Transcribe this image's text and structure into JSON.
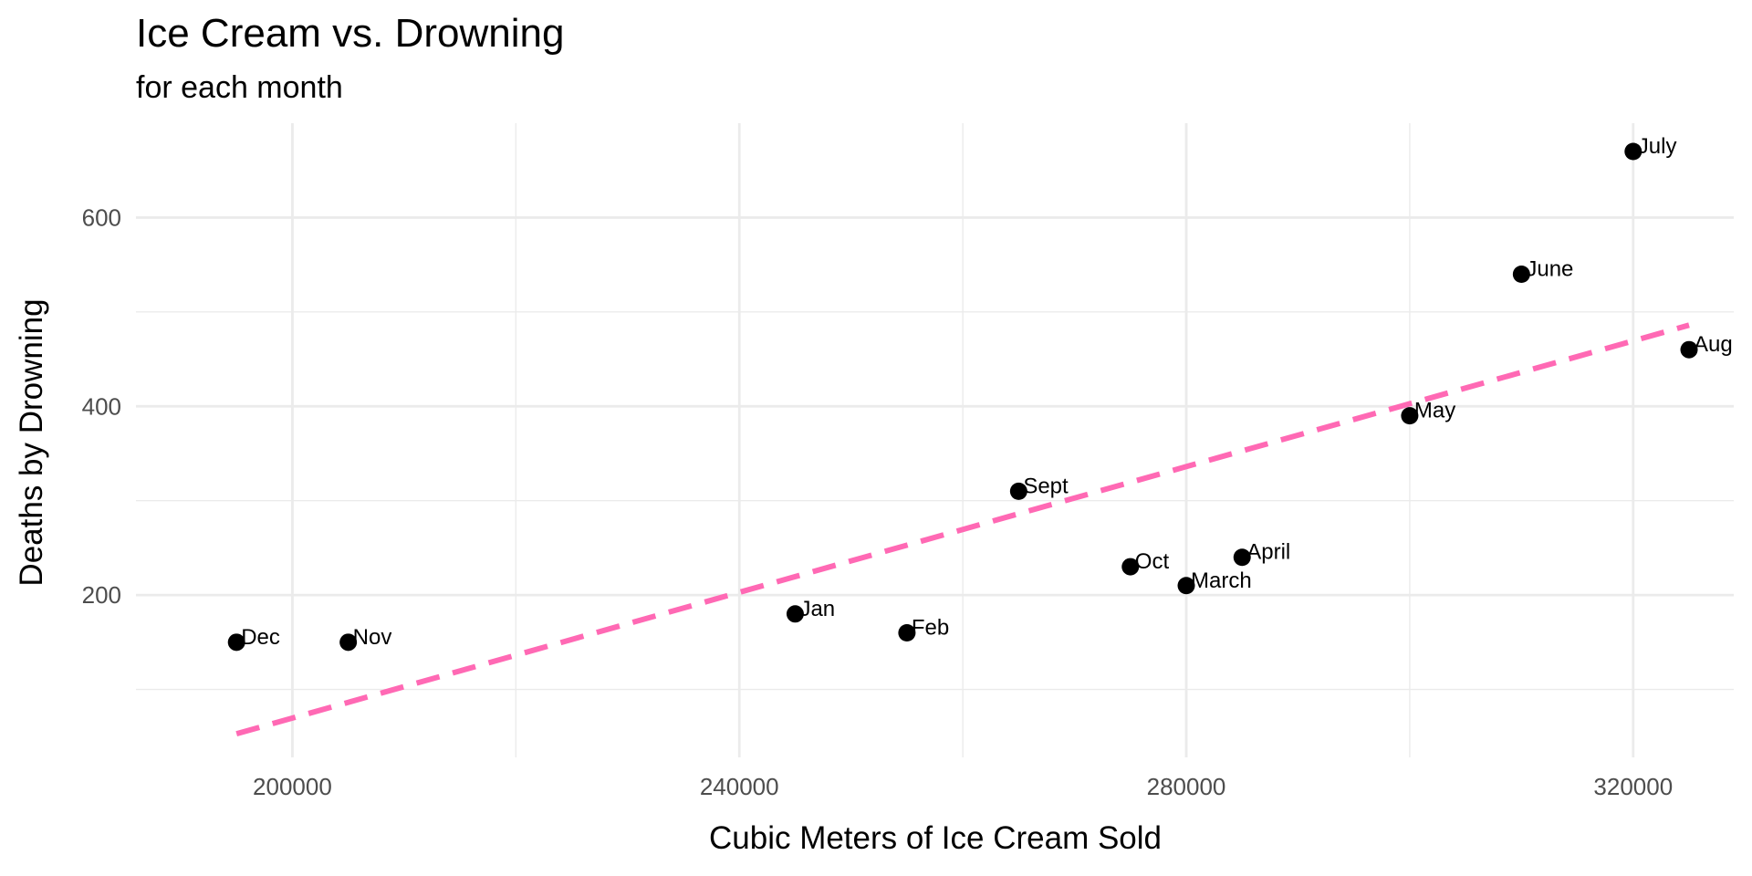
{
  "chart_data": {
    "type": "scatter",
    "title": "Ice Cream vs. Drowning",
    "subtitle": "for each month",
    "xlabel": "Cubic Meters of Ice Cream Sold",
    "ylabel": "Deaths by Drowning",
    "xlim": [
      186000,
      329000
    ],
    "ylim": [
      28,
      700
    ],
    "x_ticks": [
      200000,
      240000,
      280000,
      320000
    ],
    "y_ticks": [
      200,
      400,
      600
    ],
    "grid": true,
    "colors": {
      "points": "#000000",
      "trend": "#ff69b4",
      "grid": "#ebebeb",
      "tick_text": "#4d4d4d"
    },
    "points": [
      {
        "label": "Jan",
        "x": 245000,
        "y": 180
      },
      {
        "label": "Feb",
        "x": 255000,
        "y": 160
      },
      {
        "label": "March",
        "x": 280000,
        "y": 210
      },
      {
        "label": "April",
        "x": 285000,
        "y": 240
      },
      {
        "label": "May",
        "x": 300000,
        "y": 390
      },
      {
        "label": "June",
        "x": 310000,
        "y": 540
      },
      {
        "label": "July",
        "x": 320000,
        "y": 670
      },
      {
        "label": "Aug",
        "x": 325000,
        "y": 460
      },
      {
        "label": "Sept",
        "x": 265000,
        "y": 310
      },
      {
        "label": "Oct",
        "x": 275000,
        "y": 230
      },
      {
        "label": "Nov",
        "x": 205000,
        "y": 150
      },
      {
        "label": "Dec",
        "x": 195000,
        "y": 150
      }
    ],
    "trend_line": {
      "style": "dashed",
      "x": [
        195000,
        325000
      ],
      "y": [
        53,
        486
      ]
    }
  }
}
